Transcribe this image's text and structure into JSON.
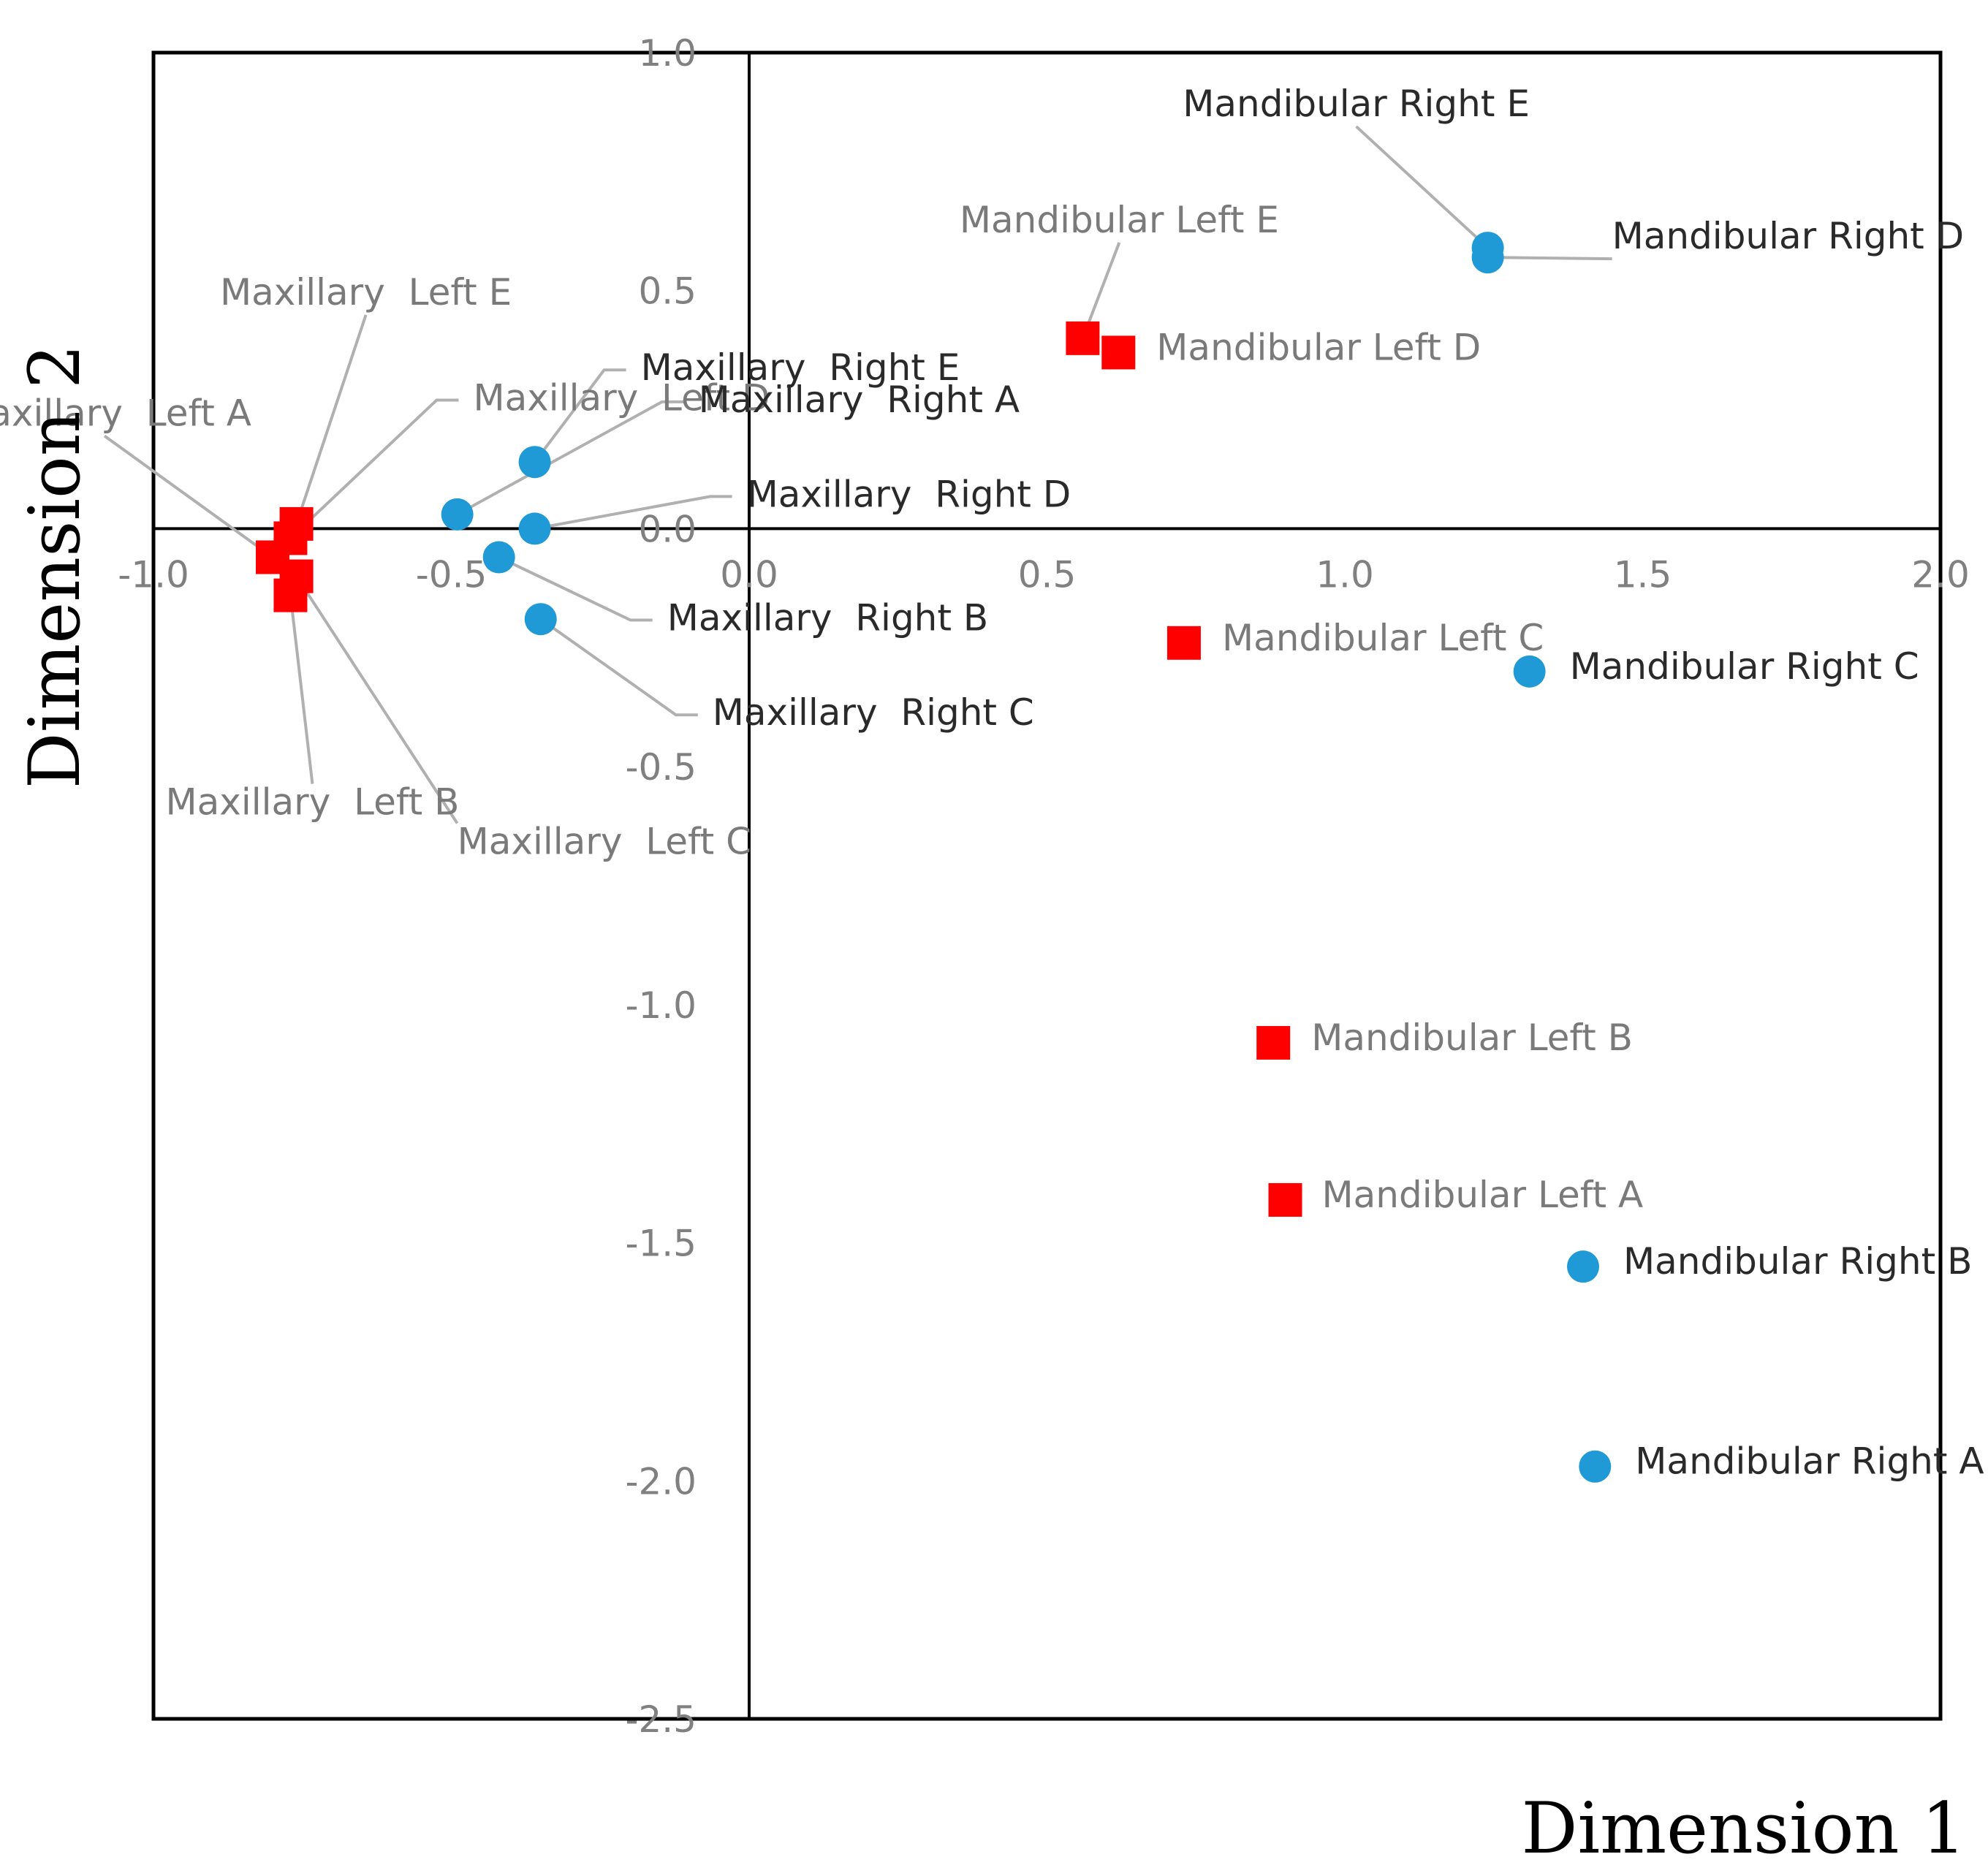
{
  "chart_data": {
    "type": "scatter",
    "xlabel": "Dimension 1",
    "ylabel": "Dimension 2",
    "xlim": [
      -1.0,
      2.0
    ],
    "ylim": [
      -2.5,
      1.0
    ],
    "x_ticks": [
      "-1.0",
      "-0.5",
      "0.0",
      "0.5",
      "1.0",
      "1.5",
      "2.0"
    ],
    "y_ticks": [
      "1.0",
      "0.5",
      "0.0",
      "-0.5",
      "-1.0",
      "-1.5",
      "-2.0",
      "-2.5"
    ],
    "grid": false,
    "colors": {
      "left": "#ff0000",
      "right": "#1f9ad6",
      "leader": "#b0b0b0",
      "label_gray": "#7a7a7a",
      "label_black": "#2a2a2a",
      "frame": "#000000"
    },
    "series": [
      {
        "marker": "square",
        "color": "#ff0000",
        "points": [
          {
            "label": "Maxillary  Left A",
            "x": -0.8,
            "y": -0.06
          },
          {
            "label": "Maxillary  Left B",
            "x": -0.77,
            "y": -0.14
          },
          {
            "label": "Maxillary  Left C",
            "x": -0.76,
            "y": -0.1
          },
          {
            "label": "Maxillary  Left D",
            "x": -0.77,
            "y": -0.02
          },
          {
            "label": "Maxillary  Left E",
            "x": -0.76,
            "y": 0.01
          },
          {
            "label": "Mandibular Left A",
            "x": 0.9,
            "y": -1.41
          },
          {
            "label": "Mandibular Left B",
            "x": 0.88,
            "y": -1.08
          },
          {
            "label": "Mandibular Left C",
            "x": 0.73,
            "y": -0.24
          },
          {
            "label": "Mandibular Left D",
            "x": 0.62,
            "y": 0.37
          },
          {
            "label": "Mandibular Left E",
            "x": 0.56,
            "y": 0.4
          }
        ]
      },
      {
        "marker": "circle",
        "color": "#1f9ad6",
        "points": [
          {
            "label": "Maxillary  Right A",
            "x": -0.49,
            "y": 0.03
          },
          {
            "label": "Maxillary  Right B",
            "x": -0.42,
            "y": -0.06
          },
          {
            "label": "Maxillary  Right C",
            "x": -0.35,
            "y": -0.19
          },
          {
            "label": "Maxillary  Right D",
            "x": -0.36,
            "y": 0.0
          },
          {
            "label": "Maxillary  Right E",
            "x": -0.36,
            "y": 0.14
          },
          {
            "label": "Mandibular Right A",
            "x": 1.42,
            "y": -1.97
          },
          {
            "label": "Mandibular Right B",
            "x": 1.4,
            "y": -1.55
          },
          {
            "label": "Mandibular Right C",
            "x": 1.31,
            "y": -0.3
          },
          {
            "label": "Mandibular Right D",
            "x": 1.24,
            "y": 0.57
          },
          {
            "label": "Mandibular Right E",
            "x": 1.24,
            "y": 0.59
          }
        ]
      }
    ]
  }
}
